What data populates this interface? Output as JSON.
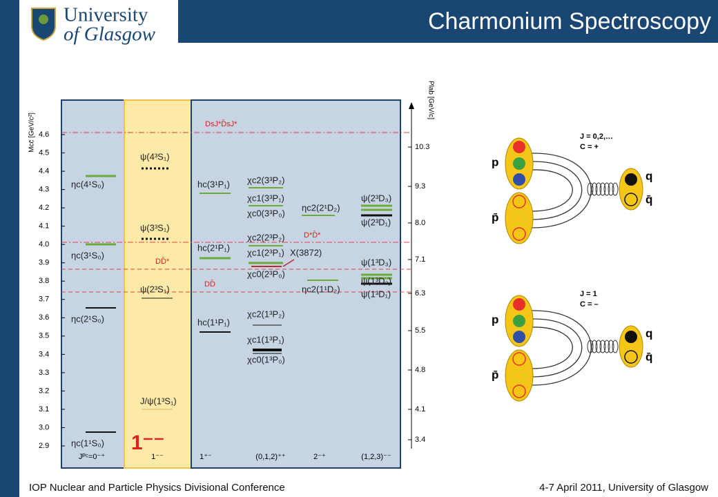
{
  "header": {
    "logo_line1": "University",
    "logo_line2": "of Glasgow",
    "title": "Charmonium Spectroscopy"
  },
  "footer": {
    "left": "IOP Nuclear and Particle Physics Divisional Conference",
    "right": "4-7 April 2011, University of Glasgow"
  },
  "diagram": {
    "mass_axis_label": "Mcc̄ [GeV/c²]",
    "mass_ticks": [
      "4.6",
      "4.5",
      "4.4",
      "4.3",
      "4.2",
      "4.1",
      "4.0",
      "3.9",
      "3.8",
      "3.7",
      "3.6",
      "3.5",
      "3.4",
      "3.3",
      "3.2",
      "3.1",
      "3.0",
      "2.9"
    ],
    "plab_axis_label": "Plab [GeV/c]",
    "plab_ticks": [
      "10.3",
      "9.3",
      "8.0",
      "7.1",
      "6.3",
      "5.5",
      "4.8",
      "4.1",
      "3.4"
    ],
    "columns": [
      "Jᴾᶜ=0⁻⁺",
      "1⁻⁻",
      "1⁺⁻",
      "(0,1,2)⁺⁺",
      "2⁻⁺",
      "(1,2,3)⁻⁻"
    ],
    "big_label": "1⁻⁻",
    "thresholds": [
      "DsJ*D̄sJ*",
      "D*D̄*",
      "DD̄*",
      "DD̄"
    ],
    "exotic": "X(3872)",
    "states": [
      "ηc(1¹S₀)",
      "ηc(2¹S₀)",
      "ηc(3¹S₀)",
      "ηc(4¹S₀)",
      "ψ(4³S₁)",
      "ψ(3³S₁)",
      "ψ(2³S₁)",
      "J/ψ(1³S₁)",
      "hc(3¹P₁)",
      "hc(2¹P₁)",
      "hc(1¹P₁)",
      "χc2(3³P₂)",
      "χc1(3³P₁)",
      "χc0(3³P₀)",
      "χc2(2³P₂)",
      "χc1(2³P₁)",
      "χc0(2³P₀)",
      "χc2(1³P₂)",
      "χc1(1³P₁)",
      "χc0(1³P₀)",
      "ηc2(2¹D₂)",
      "ηc2(1¹D₂)",
      "ψ(2³D₃)",
      "ψ(2³D₁)",
      "ψ(1³D₃)",
      "ψ(1³D₂)",
      "ψ(1³D₁)"
    ]
  },
  "quark_diagrams": [
    {
      "quantum_numbers": [
        "J = 0,2,…",
        "C = +"
      ],
      "labels": [
        "p",
        "p̄",
        "q",
        "q̄"
      ]
    },
    {
      "quantum_numbers": [
        "J = 1",
        "C = –"
      ],
      "labels": [
        "p",
        "p̄",
        "q",
        "q̄"
      ]
    }
  ]
}
